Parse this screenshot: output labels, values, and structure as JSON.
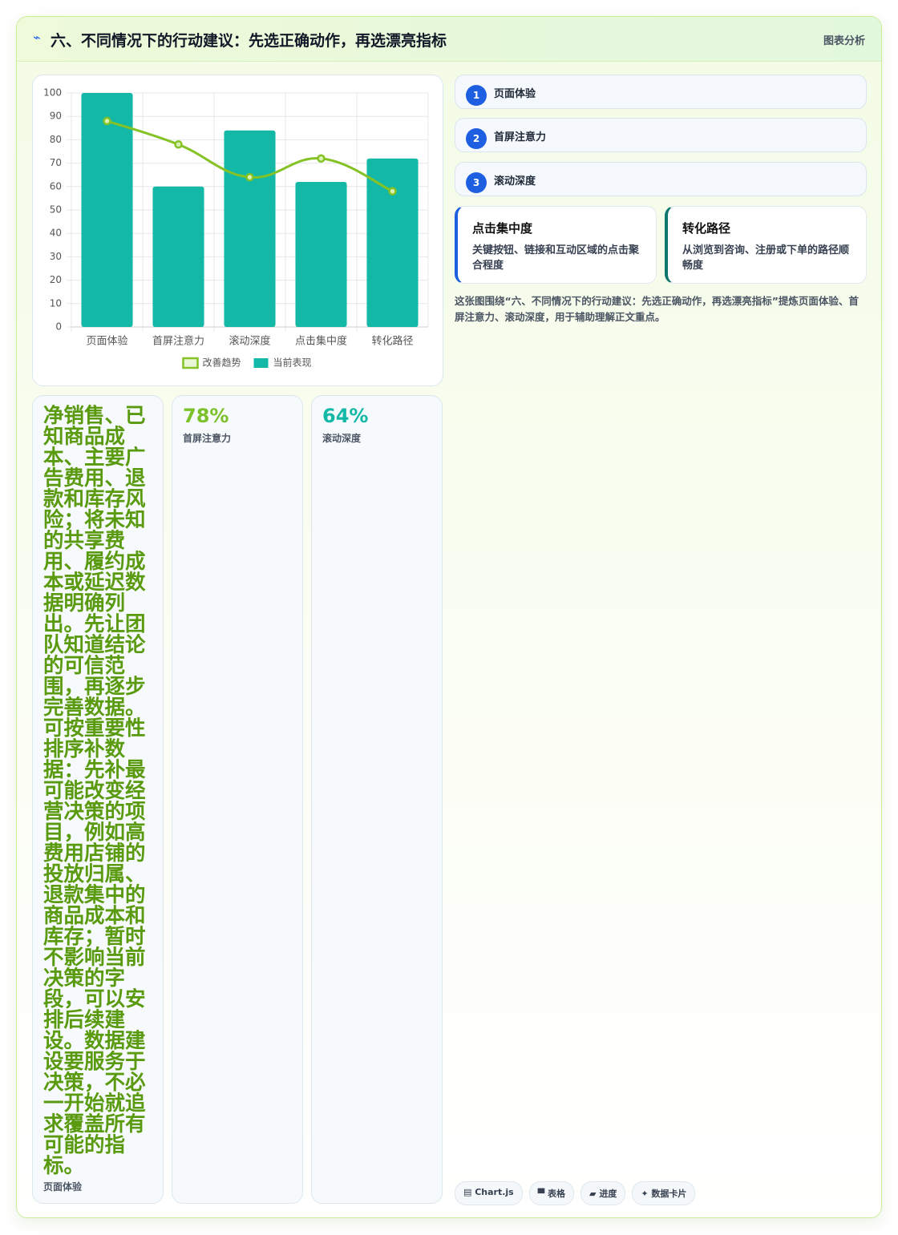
{
  "header": {
    "icon": "⌁",
    "title": "六、不同情况下的行动建议：先选正确动作，再选漂亮指标",
    "tag": "图表分析"
  },
  "chart_data": {
    "type": "bar",
    "categories": [
      "页面体验",
      "首屏注意力",
      "滚动深度",
      "点击集中度",
      "转化路径"
    ],
    "series": [
      {
        "name": "改善趋势",
        "type": "line",
        "color": "#84c225",
        "values": [
          88,
          78,
          64,
          72,
          58
        ]
      },
      {
        "name": "当前表现",
        "type": "bar",
        "color": "#14b8a6",
        "values": [
          100,
          60,
          84,
          62,
          72
        ]
      }
    ],
    "ylim": [
      0,
      100
    ],
    "yticks": [
      0,
      10,
      20,
      30,
      40,
      50,
      60,
      70,
      80,
      90,
      100
    ],
    "grid": true,
    "legend": "bottom"
  },
  "steps": [
    {
      "number": 1,
      "label": "页面体验"
    },
    {
      "number": 2,
      "label": "首屏注意力"
    },
    {
      "number": 3,
      "label": "滚动深度"
    }
  ],
  "cards": [
    {
      "title": "点击集中度",
      "text": "关键按钮、链接和互动区域的点击聚合程度"
    },
    {
      "title": "转化路径",
      "text": "从浏览到咨询、注册或下单的路径顺畅度"
    }
  ],
  "note": "这张图围绕“六、不同情况下的行动建议：先选正确动作，再选漂亮指标”提炼页面体验、首屏注意力、滚动深度，用于辅助理解正文重点。",
  "stats": [
    {
      "value": "净销售、已知商品成本、主要广告费用、退款和库存风险；将未知的共享费用、履约成本或延迟数据明确列出。先让团队知道结论的可信范围，再逐步完善数据。可按重要性排序补数据：先补最可能改变经营决策的项目，例如高费用店铺的投放归属、退款集中的商品成本和库存；暂时不影响当前决策的字段，可以安排后续建设。数据建设要服务于决策，不必一开始就追求覆盖所有可能的指标。",
      "label": "页面体验"
    },
    {
      "value": "78%",
      "label": "首屏注意力"
    },
    {
      "value": "64%",
      "label": "滚动深度"
    }
  ],
  "tags": [
    "▤ Chart.js",
    "▀ 表格",
    "▰ 进度",
    "✦ 数据卡片"
  ]
}
